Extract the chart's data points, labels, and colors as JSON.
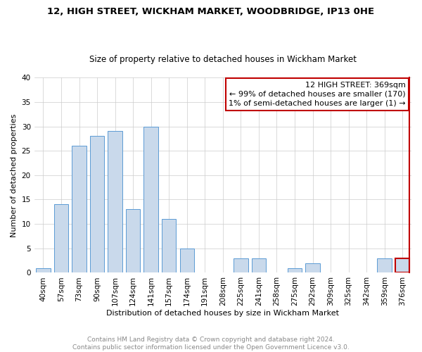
{
  "title": "12, HIGH STREET, WICKHAM MARKET, WOODBRIDGE, IP13 0HE",
  "subtitle": "Size of property relative to detached houses in Wickham Market",
  "xlabel": "Distribution of detached houses by size in Wickham Market",
  "ylabel": "Number of detached properties",
  "categories": [
    "40sqm",
    "57sqm",
    "73sqm",
    "90sqm",
    "107sqm",
    "124sqm",
    "141sqm",
    "157sqm",
    "174sqm",
    "191sqm",
    "208sqm",
    "225sqm",
    "241sqm",
    "258sqm",
    "275sqm",
    "292sqm",
    "309sqm",
    "325sqm",
    "342sqm",
    "359sqm",
    "376sqm"
  ],
  "values": [
    1,
    14,
    26,
    28,
    29,
    13,
    30,
    11,
    5,
    0,
    0,
    3,
    3,
    0,
    1,
    2,
    0,
    0,
    0,
    3,
    3
  ],
  "bar_color": "#c9d9eb",
  "bar_edge_color": "#5b9bd5",
  "highlight_color": "#c00000",
  "highlight_index": 20,
  "ylim": [
    0,
    40
  ],
  "yticks": [
    0,
    5,
    10,
    15,
    20,
    25,
    30,
    35,
    40
  ],
  "annotation_title": "12 HIGH STREET: 369sqm",
  "annotation_line1": "← 99% of detached houses are smaller (170)",
  "annotation_line2": "1% of semi-detached houses are larger (1) →",
  "footer": "Contains HM Land Registry data © Crown copyright and database right 2024.\nContains public sector information licensed under the Open Government Licence v3.0.",
  "bg_color": "#ffffff",
  "grid_color": "#cccccc",
  "title_fontsize": 9.5,
  "subtitle_fontsize": 8.5,
  "tick_fontsize": 7.5,
  "ylabel_fontsize": 8,
  "xlabel_fontsize": 8,
  "footer_fontsize": 6.5,
  "annot_fontsize": 8
}
